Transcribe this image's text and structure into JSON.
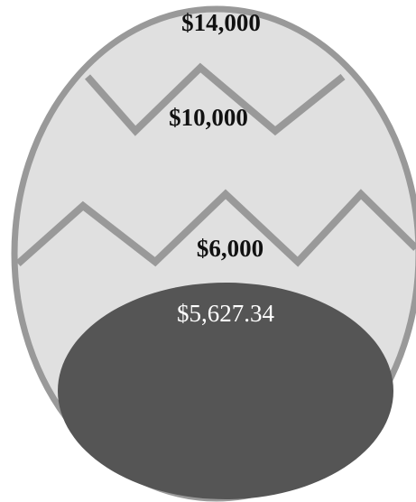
{
  "goal_levels": [
    "$14,000",
    "$10,000",
    "$6,000"
  ],
  "current": "$5,627.34"
}
